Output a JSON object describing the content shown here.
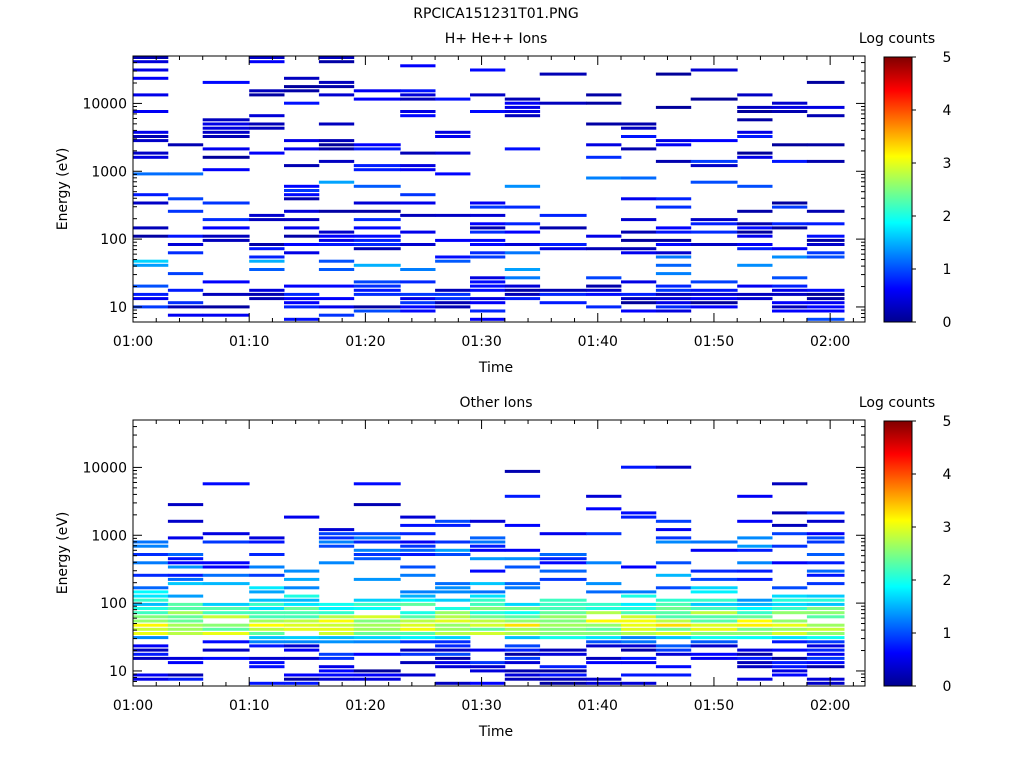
{
  "file_title": "RPCICA151231T01.PNG",
  "chart_data": [
    {
      "type": "heatmap",
      "title": "H+ He++ Ions",
      "xlabel": "Time",
      "ylabel": "Energy (eV)",
      "xticks": [
        "01:00",
        "01:10",
        "01:20",
        "01:30",
        "01:40",
        "01:50",
        "02:00"
      ],
      "xlim": [
        "01:00",
        "02:03"
      ],
      "ylim": [
        6,
        50000
      ],
      "yscale": "log",
      "yticks": [
        "10",
        "100",
        "1000",
        "10000"
      ],
      "colorbar": {
        "label": "Log counts",
        "range": [
          0,
          5
        ],
        "ticks": [
          "0",
          "1",
          "2",
          "3",
          "4",
          "5"
        ]
      },
      "time_columns": [
        "01:00",
        "01:03",
        "01:06",
        "01:10",
        "01:13",
        "01:16",
        "01:19",
        "01:23",
        "01:26",
        "01:29",
        "01:32",
        "01:35",
        "01:39",
        "01:42",
        "01:45",
        "01:48",
        "01:52",
        "01:55",
        "01:58"
      ],
      "profile": [
        [
          5,
          0.5,
          0.8
        ],
        [
          8,
          1.0,
          0.8
        ],
        [
          10,
          0.5,
          0.4
        ],
        [
          15,
          0.5,
          0.3
        ],
        [
          20,
          0.6,
          0.4
        ],
        [
          28,
          0.9,
          0.8
        ],
        [
          40,
          1.5,
          0.9
        ],
        [
          55,
          0.9,
          0.8
        ],
        [
          80,
          0.5,
          0.6
        ],
        [
          120,
          0.4,
          0.5
        ],
        [
          200,
          0.4,
          0.6
        ],
        [
          350,
          0.5,
          0.7
        ],
        [
          500,
          0.8,
          0.8
        ],
        [
          700,
          1.2,
          0.9
        ],
        [
          1000,
          0.8,
          0.8
        ],
        [
          1500,
          0.4,
          0.7
        ],
        [
          2500,
          0.3,
          0.65
        ],
        [
          4000,
          0.3,
          0.7
        ],
        [
          7000,
          0.3,
          0.7
        ],
        [
          12000,
          0.3,
          0.7
        ],
        [
          20000,
          0.3,
          0.75
        ],
        [
          30000,
          0.3,
          0.8
        ],
        [
          40000,
          0.3,
          0.85
        ],
        [
          50000,
          0.3,
          0.9
        ]
      ]
    },
    {
      "type": "heatmap",
      "title": "Other Ions",
      "xlabel": "Time",
      "ylabel": "Energy (eV)",
      "xticks": [
        "01:00",
        "01:10",
        "01:20",
        "01:30",
        "01:40",
        "01:50",
        "02:00"
      ],
      "xlim": [
        "01:00",
        "02:03"
      ],
      "ylim": [
        6,
        50000
      ],
      "yscale": "log",
      "yticks": [
        "10",
        "100",
        "1000",
        "10000"
      ],
      "colorbar": {
        "label": "Log counts",
        "range": [
          0,
          5
        ],
        "ticks": [
          "0",
          "1",
          "2",
          "3",
          "4",
          "5"
        ]
      },
      "time_columns": [
        "01:00",
        "01:03",
        "01:06",
        "01:10",
        "01:13",
        "01:16",
        "01:19",
        "01:23",
        "01:26",
        "01:29",
        "01:32",
        "01:35",
        "01:39",
        "01:42",
        "01:45",
        "01:48",
        "01:52",
        "01:55",
        "01:58"
      ],
      "profile": [
        [
          5,
          0.3,
          0.3
        ],
        [
          7,
          0.3,
          0.3
        ],
        [
          10,
          0.4,
          0.5
        ],
        [
          15,
          0.5,
          0.4
        ],
        [
          20,
          0.6,
          0.5
        ],
        [
          25,
          0.8,
          0.5
        ],
        [
          30,
          1.5,
          0.2
        ],
        [
          35,
          2.6,
          0.1
        ],
        [
          45,
          2.9,
          0.08
        ],
        [
          55,
          2.7,
          0.08
        ],
        [
          70,
          2.4,
          0.1
        ],
        [
          90,
          2.0,
          0.15
        ],
        [
          120,
          1.7,
          0.4
        ],
        [
          150,
          1.4,
          0.6
        ],
        [
          200,
          1.2,
          0.65
        ],
        [
          300,
          1.0,
          0.7
        ],
        [
          500,
          1.0,
          0.6
        ],
        [
          700,
          1.0,
          0.6
        ],
        [
          1000,
          0.8,
          0.7
        ],
        [
          1500,
          0.6,
          0.8
        ],
        [
          2500,
          0.4,
          0.9
        ],
        [
          4000,
          0.3,
          0.93
        ],
        [
          6000,
          0.3,
          0.95
        ],
        [
          9000,
          0.3,
          0.96
        ],
        [
          12000,
          0.3,
          0.97
        ],
        [
          17000,
          0.3,
          0.98
        ],
        [
          25000,
          0.3,
          1.0
        ],
        [
          50000,
          0.3,
          1.0
        ]
      ]
    }
  ]
}
